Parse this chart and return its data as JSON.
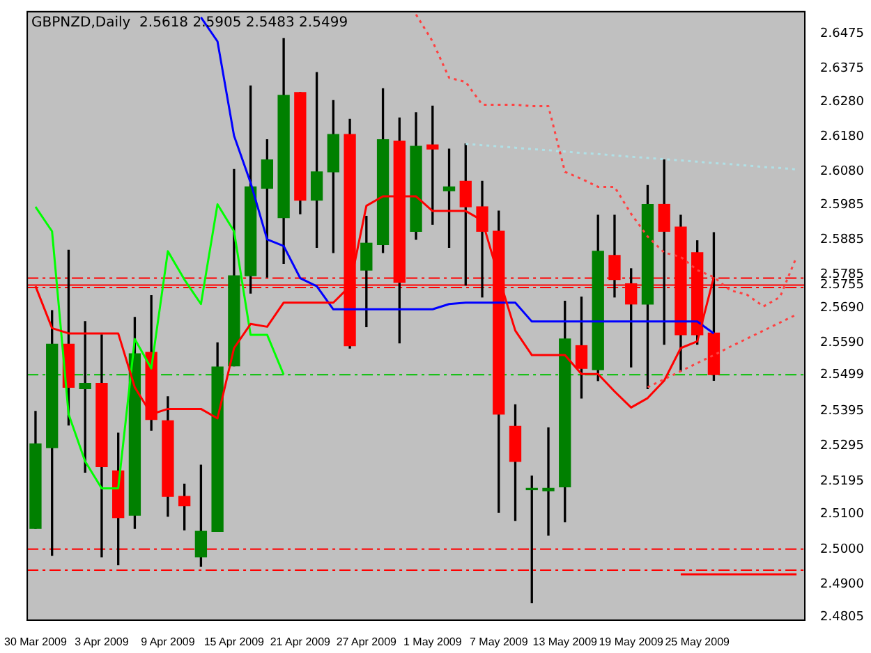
{
  "chart_data": {
    "type": "candlestick",
    "title": "GBPNZD,Daily  2.5618 2.5905 2.5483 2.5499",
    "categories": [
      "30 Mar 2009",
      null,
      null,
      null,
      "3 Apr 2009",
      null,
      null,
      null,
      "9 Apr 2009",
      null,
      null,
      null,
      "15 Apr 2009",
      null,
      null,
      null,
      "21 Apr 2009",
      null,
      null,
      null,
      "27 Apr 2009",
      null,
      null,
      null,
      "1 May 2009",
      null,
      null,
      null,
      "7 May 2009",
      null,
      null,
      null,
      "13 May 2009",
      null,
      null,
      null,
      "19 May 2009",
      null,
      null,
      null,
      "25 May 2009",
      null,
      null,
      null,
      null,
      null,
      null
    ],
    "ohlc": [
      [
        2.5059,
        2.5394,
        2.5059,
        2.5301
      ],
      [
        2.529,
        2.5682,
        2.4982,
        2.5586
      ],
      [
        2.5586,
        2.5855,
        2.5355,
        2.5463
      ],
      [
        2.5459,
        2.5651,
        2.522,
        2.5474
      ],
      [
        2.5474,
        2.5613,
        2.4978,
        2.5236
      ],
      [
        2.5224,
        2.5332,
        2.4955,
        2.509
      ],
      [
        2.5097,
        2.5663,
        2.5059,
        2.5559
      ],
      [
        2.5563,
        2.5725,
        2.534,
        2.5371
      ],
      [
        2.5367,
        2.5436,
        2.5094,
        2.5151
      ],
      [
        2.5151,
        2.5186,
        2.5055,
        2.5124
      ],
      [
        2.4978,
        2.524,
        2.4951,
        2.5051
      ],
      [
        2.5051,
        2.559,
        2.5051,
        2.5521
      ],
      [
        2.5524,
        2.6086,
        2.5524,
        2.5782
      ],
      [
        2.5782,
        2.6325,
        2.5732,
        2.6036
      ],
      [
        2.6032,
        2.6171,
        2.5778,
        2.6113
      ],
      [
        2.5948,
        2.646,
        2.5817,
        2.6298
      ],
      [
        2.6306,
        2.6306,
        2.5959,
        2.5998
      ],
      [
        2.5998,
        2.6363,
        2.5863,
        2.6079
      ],
      [
        2.6079,
        2.6283,
        2.5848,
        2.6186
      ],
      [
        2.6186,
        2.6229,
        2.5575,
        2.5582
      ],
      [
        2.5798,
        2.5952,
        2.5636,
        2.5875
      ],
      [
        2.5871,
        2.6317,
        2.5848,
        2.6171
      ],
      [
        2.6167,
        2.6233,
        2.559,
        2.5763
      ],
      [
        2.5909,
        2.6248,
        2.5886,
        2.6152
      ],
      [
        2.6156,
        2.6267,
        2.5929,
        2.6144
      ],
      [
        2.6025,
        2.6144,
        2.5863,
        2.6036
      ],
      [
        2.6052,
        2.6159,
        2.5755,
        2.5979
      ],
      [
        2.5979,
        2.6052,
        2.5721,
        2.5909
      ],
      [
        2.5909,
        2.5967,
        2.5105,
        2.5386
      ],
      [
        2.5351,
        2.5413,
        2.5082,
        2.5251
      ],
      [
        2.517,
        2.5209,
        2.4847,
        2.5174
      ],
      [
        2.5167,
        2.5347,
        2.504,
        2.5174
      ],
      [
        2.5178,
        2.5709,
        2.5078,
        2.5601
      ],
      [
        2.5582,
        2.5721,
        2.5432,
        2.5517
      ],
      [
        2.5513,
        2.5955,
        2.5482,
        2.5852
      ],
      [
        2.584,
        2.5955,
        2.5721,
        2.5771
      ],
      [
        2.5759,
        2.5802,
        2.5521,
        2.5701
      ],
      [
        2.5701,
        2.604,
        2.5459,
        2.5986
      ],
      [
        2.5986,
        2.6113,
        2.5586,
        2.5909
      ],
      [
        2.5921,
        2.5955,
        2.5509,
        2.5613
      ],
      [
        2.5848,
        2.5882,
        2.5586,
        2.5613
      ],
      [
        2.5618,
        2.5905,
        2.5483,
        2.5499
      ],
      null,
      null,
      null,
      null,
      null
    ],
    "colors": [
      "#008000",
      "#008000",
      "#ff0000",
      "#008000",
      "#ff0000",
      "#ff0000",
      "#008000",
      "#ff0000",
      "#ff0000",
      "#ff0000",
      "#008000",
      "#008000",
      "#008000",
      "#008000",
      "#008000",
      "#008000",
      "#ff0000",
      "#008000",
      "#008000",
      "#ff0000",
      "#008000",
      "#008000",
      "#ff0000",
      "#008000",
      "#ff0000",
      "#008000",
      "#ff0000",
      "#ff0000",
      "#ff0000",
      "#ff0000",
      "#008000",
      "#008000",
      "#008000",
      "#ff0000",
      "#008000",
      "#ff0000",
      "#ff0000",
      "#008000",
      "#ff0000",
      "#ff0000",
      "#ff0000",
      "#ff0000",
      null,
      null,
      null,
      null,
      null
    ],
    "series": [
      {
        "type": "line",
        "color": "#ff0000",
        "values": [
          2.5752,
          2.5632,
          2.5617,
          2.5617,
          2.5617,
          2.5617,
          2.5463,
          2.5386,
          2.5401,
          2.5401,
          2.5401,
          2.5374,
          2.5575,
          2.5644,
          2.5636,
          2.5705,
          2.5705,
          2.5705,
          2.5705,
          2.5752,
          2.5982,
          2.6009,
          2.6009,
          2.6009,
          2.5967,
          2.5967,
          2.5967,
          2.594,
          2.5778,
          2.5625,
          2.5555,
          2.5555,
          2.5555,
          2.5501,
          2.5501,
          2.5451,
          2.5405,
          2.5432,
          2.5482,
          2.5575,
          2.5594,
          2.5778,
          null,
          null,
          null,
          null,
          null
        ]
      },
      {
        "type": "line",
        "color": "#0000ff",
        "values": [
          null,
          null,
          null,
          null,
          null,
          null,
          null,
          null,
          null,
          null,
          2.6521,
          2.6452,
          2.6182,
          2.6048,
          2.5886,
          2.5867,
          2.5775,
          2.5752,
          2.5686,
          2.5686,
          2.5686,
          2.5686,
          2.5686,
          2.5686,
          2.5686,
          2.5701,
          2.5705,
          2.5705,
          2.5705,
          2.5705,
          2.5651,
          2.5651,
          2.5651,
          2.5651,
          2.5651,
          2.5651,
          2.5651,
          2.5651,
          2.5651,
          2.5651,
          2.5651,
          2.5617,
          null,
          null,
          null,
          null,
          null
        ]
      },
      {
        "type": "line",
        "color": "#00ff00",
        "values": [
          2.5979,
          2.5909,
          2.5386,
          2.5251,
          2.5174,
          2.5174,
          2.5601,
          2.5517,
          2.5852,
          2.5771,
          2.5701,
          2.5986,
          2.5909,
          2.5613,
          2.5613,
          2.5499,
          null,
          null,
          null,
          null,
          null,
          null,
          null,
          null,
          null,
          null,
          null,
          null,
          null,
          null,
          null,
          null,
          null,
          null,
          null,
          null,
          null,
          null,
          null,
          null,
          null,
          null,
          null,
          null,
          null,
          null,
          null
        ]
      },
      {
        "type": "line",
        "color": "#ff4040",
        "line_style": "dotted",
        "values": [
          null,
          null,
          null,
          null,
          null,
          null,
          null,
          null,
          null,
          null,
          null,
          null,
          null,
          null,
          null,
          null,
          null,
          null,
          null,
          null,
          null,
          null,
          null,
          2.6529,
          2.6452,
          2.6348,
          2.6336,
          2.6271,
          2.6271,
          2.6271,
          2.6267,
          2.6267,
          2.6079,
          2.6059,
          2.6036,
          2.6036,
          2.5959,
          2.5894,
          2.5848,
          2.5836,
          2.5798,
          2.5778,
          2.574,
          2.5728,
          2.5694,
          2.5721,
          2.5836
        ]
      },
      {
        "type": "line",
        "color": "#ff4040",
        "line_style": "dotted",
        "values": [
          null,
          null,
          null,
          null,
          null,
          null,
          null,
          null,
          null,
          null,
          null,
          null,
          null,
          null,
          null,
          null,
          null,
          null,
          null,
          null,
          null,
          null,
          null,
          null,
          null,
          null,
          null,
          null,
          null,
          null,
          null,
          null,
          null,
          null,
          null,
          null,
          null,
          2.5463,
          2.5486,
          2.5509,
          2.5532,
          2.5555,
          2.5579,
          2.5602,
          2.5625,
          2.5648,
          2.5671
        ]
      },
      {
        "type": "line",
        "color": "#b0e0e6",
        "line_style": "dotted",
        "values": [
          null,
          null,
          null,
          null,
          null,
          null,
          null,
          null,
          null,
          null,
          null,
          null,
          null,
          null,
          null,
          null,
          null,
          null,
          null,
          null,
          null,
          null,
          null,
          null,
          null,
          null,
          2.6159,
          2.6155,
          2.6152,
          2.6148,
          2.6144,
          2.6141,
          2.6137,
          2.6133,
          2.613,
          2.6126,
          2.6122,
          2.6119,
          2.6115,
          2.6112,
          2.6108,
          2.6104,
          2.6101,
          2.6097,
          2.6093,
          2.609,
          2.6086
        ]
      },
      {
        "type": "line",
        "color": "#ff0000",
        "values": [
          null,
          null,
          null,
          null,
          null,
          null,
          null,
          null,
          null,
          null,
          null,
          null,
          null,
          null,
          null,
          null,
          null,
          null,
          null,
          null,
          null,
          null,
          null,
          null,
          null,
          null,
          null,
          null,
          null,
          null,
          null,
          null,
          null,
          null,
          null,
          null,
          null,
          null,
          null,
          2.4928,
          2.4928,
          2.4928,
          2.4928,
          2.4928,
          2.4928,
          2.4928,
          2.4928
        ]
      }
    ],
    "ref_lines": [
      {
        "axis": "y",
        "value": 2.5775,
        "color": "#ff0000",
        "line_style": "dashed"
      },
      {
        "axis": "y",
        "value": 2.5755,
        "color": "#ff0000",
        "line_style": "solid"
      },
      {
        "axis": "y",
        "value": 2.5748,
        "color": "#ff0000",
        "line_style": "dashed"
      },
      {
        "axis": "y",
        "value": 2.5499,
        "color": "#00c000",
        "line_style": "dashed"
      },
      {
        "axis": "y",
        "value": 2.5,
        "color": "#ff0000",
        "line_style": "dashed"
      },
      {
        "axis": "y",
        "value": 2.494,
        "color": "#ff0000",
        "line_style": "dashed"
      }
    ],
    "ylim": [
      2.4797,
      2.6537
    ],
    "yticks": [
      2.6475,
      2.6375,
      {
        "value": 2.628,
        "label": "2.6280"
      },
      {
        "value": 2.618,
        "label": "2.6180"
      },
      {
        "value": 2.608,
        "label": "2.6080"
      },
      2.5985,
      2.5885,
      2.5785,
      2.5755,
      {
        "value": 2.569,
        "label": "2.5690"
      },
      {
        "value": 2.559,
        "label": "2.5590"
      },
      2.5499,
      2.5395,
      2.5295,
      2.5195,
      {
        "value": 2.51,
        "label": "2.5100"
      },
      {
        "value": 2.5,
        "label": "2.5000"
      },
      {
        "value": 2.49,
        "label": "2.4900"
      },
      2.4805
    ]
  }
}
